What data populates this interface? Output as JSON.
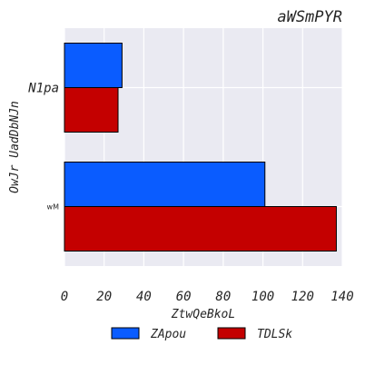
{
  "chart_data": {
    "type": "bar",
    "orientation": "horizontal",
    "title": "aWSmPYR",
    "xlabel": "ZtwQeBkoL",
    "ylabel": "OwJr UadDbNJn",
    "categories": [
      "N1pa",
      "wM"
    ],
    "xlim": [
      0,
      140
    ],
    "xticks": [
      0,
      20,
      40,
      60,
      80,
      100,
      120,
      140
    ],
    "grid": true,
    "legend_position": "bottom",
    "series": [
      {
        "name": "ZApou",
        "color": "#0a5cff",
        "values": [
          29,
          101
        ]
      },
      {
        "name": "TDLSk",
        "color": "#c40000",
        "values": [
          27,
          137
        ]
      }
    ]
  }
}
